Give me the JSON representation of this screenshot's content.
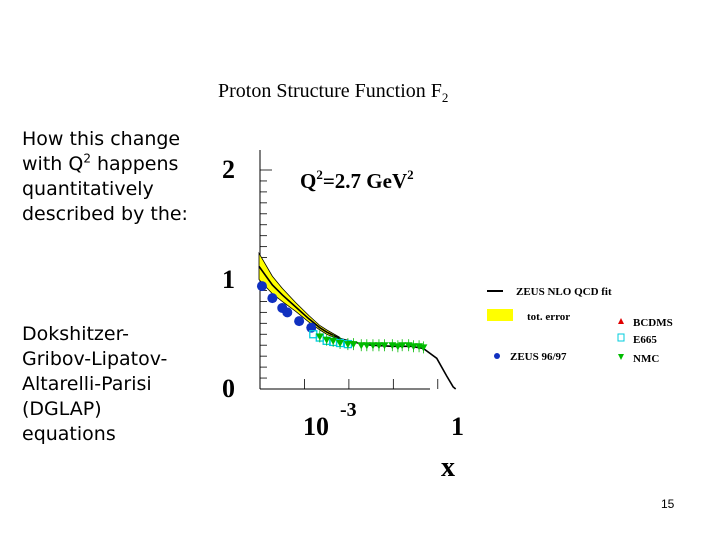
{
  "slide": {
    "title_main": "Proton Structure Function F",
    "title_sub": "2",
    "para1_pre": "How this change with Q",
    "para1_sup": "2",
    "para1_post": " happens quantitatively described by the:",
    "para2": "Dokshitzer-Gribov-Lipatov-Altarelli-Parisi (DGLAP) equations",
    "page_number": "15"
  },
  "chart_data": {
    "type": "scatter",
    "annotation": {
      "q": "Q",
      "sup1": "2",
      "mid": "=2.7 GeV",
      "sup2": "2"
    },
    "xlabel": "x",
    "x_scale": "log",
    "xlim": [
      3.16e-05,
      1
    ],
    "ylim": [
      0,
      2
    ],
    "y_ticks": [
      "0",
      "1",
      "2"
    ],
    "x_ticks": [
      {
        "base": "10",
        "exp": "-3",
        "value": 0.001
      },
      {
        "base": "1",
        "exp": "",
        "value": 1
      }
    ],
    "legend": [
      {
        "label": "ZEUS NLO QCD fit",
        "marker": "line",
        "color": "#000000"
      },
      {
        "label": "tot. error",
        "marker": "box",
        "color": "#ffff00"
      },
      {
        "label": "BCDMS",
        "marker": "triangle-up",
        "color": "#e00000"
      },
      {
        "label": "E665",
        "marker": "open-square",
        "color": "#00ccdd"
      },
      {
        "label": "ZEUS 96/97",
        "marker": "circle",
        "color": "#1030c0"
      },
      {
        "label": "NMC",
        "marker": "triangle-down",
        "color": "#00bb00"
      }
    ],
    "series": [
      {
        "name": "ZEUS NLO QCD fit",
        "style": "line",
        "x": [
          3e-05,
          6e-05,
          0.0001,
          0.0002,
          0.0004,
          0.0007,
          0.001,
          0.002,
          0.005,
          0.01,
          0.03,
          0.08,
          0.15,
          0.3,
          0.5,
          0.7,
          0.8
        ],
        "y": [
          1.12,
          0.95,
          0.86,
          0.75,
          0.64,
          0.56,
          0.52,
          0.46,
          0.42,
          0.4,
          0.39,
          0.39,
          0.37,
          0.28,
          0.12,
          0.02,
          0.0
        ]
      },
      {
        "name": "tot. error",
        "style": "band",
        "x": [
          3e-05,
          6e-05,
          0.0001,
          0.0002,
          0.0004,
          0.0007,
          0.001,
          0.002
        ],
        "lower": [
          1.0,
          0.87,
          0.8,
          0.71,
          0.61,
          0.54,
          0.5,
          0.45
        ],
        "upper": [
          1.24,
          1.03,
          0.92,
          0.79,
          0.67,
          0.58,
          0.54,
          0.47
        ]
      },
      {
        "name": "ZEUS 96/97",
        "style": "circle",
        "x": [
          3.5e-05,
          6e-05,
          0.0001,
          0.00013,
          0.00024,
          0.00045
        ],
        "y": [
          0.94,
          0.83,
          0.74,
          0.7,
          0.62,
          0.56
        ]
      },
      {
        "name": "E665",
        "style": "open-square",
        "x": [
          0.0005,
          0.0007,
          0.001,
          0.0014,
          0.002,
          0.003
        ],
        "y": [
          0.5,
          0.47,
          0.44,
          0.43,
          0.42,
          0.41
        ]
      },
      {
        "name": "NMC",
        "style": "triangle-down",
        "x": [
          0.0007,
          0.001,
          0.0014,
          0.002,
          0.003,
          0.004,
          0.006,
          0.008,
          0.011,
          0.015,
          0.02,
          0.03,
          0.04,
          0.05,
          0.07,
          0.09,
          0.12,
          0.15
        ],
        "y": [
          0.48,
          0.45,
          0.44,
          0.42,
          0.41,
          0.41,
          0.4,
          0.4,
          0.4,
          0.4,
          0.4,
          0.4,
          0.39,
          0.4,
          0.4,
          0.39,
          0.39,
          0.38
        ]
      }
    ]
  }
}
